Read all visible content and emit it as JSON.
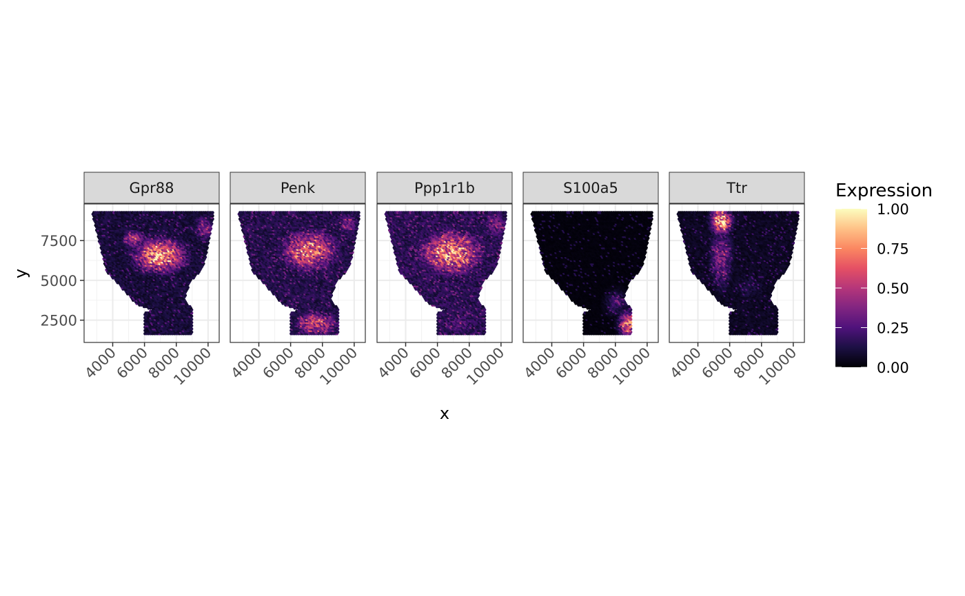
{
  "chart_data": {
    "type": "scatter",
    "xlabel": "x",
    "ylabel": "y",
    "xlim": [
      2200,
      10700
    ],
    "ylim": [
      1100,
      9800
    ],
    "x_ticks": [
      4000,
      6000,
      8000,
      10000
    ],
    "x_tick_labels": [
      "4000",
      "6000",
      "8000",
      "10000"
    ],
    "y_ticks": [
      2500,
      5000,
      7500
    ],
    "y_tick_labels": [
      "2500",
      "5000",
      "7500"
    ],
    "grid": true,
    "legend": {
      "title": "Expression",
      "placement": "right",
      "range": [
        0,
        1
      ],
      "ticks": [
        0,
        0.25,
        0.5,
        0.75,
        1
      ],
      "tick_labels": [
        "0.00",
        "0.25",
        "0.50",
        "0.75",
        "1.00"
      ],
      "palette": [
        "#000004",
        "#1c1044",
        "#4f127b",
        "#812581",
        "#b5367a",
        "#e55064",
        "#fb8761",
        "#fec287",
        "#fcfdbf"
      ]
    },
    "tissue_outline": {
      "x": [
        2700,
        10300,
        10300,
        9700,
        8850,
        8500,
        9000,
        9000,
        6000,
        6000,
        6600,
        5500,
        3600,
        2700
      ],
      "y": [
        9300,
        9300,
        8800,
        5800,
        4900,
        3800,
        3200,
        1600,
        1600,
        3000,
        3100,
        3500,
        5600,
        9300
      ]
    },
    "panels": [
      {
        "gene": "Gpr88",
        "hotspots": [
          {
            "x": 7000,
            "y": 6600,
            "sx": 1500,
            "sy": 1000,
            "value": 0.88
          },
          {
            "x": 5400,
            "y": 7600,
            "sx": 700,
            "sy": 600,
            "value": 0.5
          },
          {
            "x": 9800,
            "y": 8300,
            "sx": 700,
            "sy": 900,
            "value": 0.35
          }
        ],
        "baseline": 0.12
      },
      {
        "gene": "Penk",
        "hotspots": [
          {
            "x": 7200,
            "y": 6900,
            "sx": 1700,
            "sy": 1200,
            "value": 0.72
          },
          {
            "x": 7600,
            "y": 2300,
            "sx": 1300,
            "sy": 700,
            "value": 0.62
          },
          {
            "x": 9600,
            "y": 8600,
            "sx": 800,
            "sy": 800,
            "value": 0.35
          }
        ],
        "baseline": 0.16
      },
      {
        "gene": "Ppp1r1b",
        "hotspots": [
          {
            "x": 6900,
            "y": 6800,
            "sx": 1800,
            "sy": 1300,
            "value": 0.82
          },
          {
            "x": 7400,
            "y": 2300,
            "sx": 1200,
            "sy": 800,
            "value": 0.3
          },
          {
            "x": 9700,
            "y": 8500,
            "sx": 800,
            "sy": 900,
            "value": 0.4
          }
        ],
        "baseline": 0.18
      },
      {
        "gene": "S100a5",
        "hotspots": [
          {
            "x": 8800,
            "y": 2300,
            "sx": 500,
            "sy": 700,
            "value": 0.78
          },
          {
            "x": 8100,
            "y": 3600,
            "sx": 700,
            "sy": 800,
            "value": 0.22
          }
        ],
        "baseline": 0.02
      },
      {
        "gene": "Ttr",
        "hotspots": [
          {
            "x": 5500,
            "y": 8700,
            "sx": 600,
            "sy": 700,
            "value": 0.95
          },
          {
            "x": 5500,
            "y": 6500,
            "sx": 650,
            "sy": 1800,
            "value": 0.42
          },
          {
            "x": 7200,
            "y": 4600,
            "sx": 1500,
            "sy": 1200,
            "value": 0.12
          }
        ],
        "baseline": 0.07
      }
    ]
  }
}
